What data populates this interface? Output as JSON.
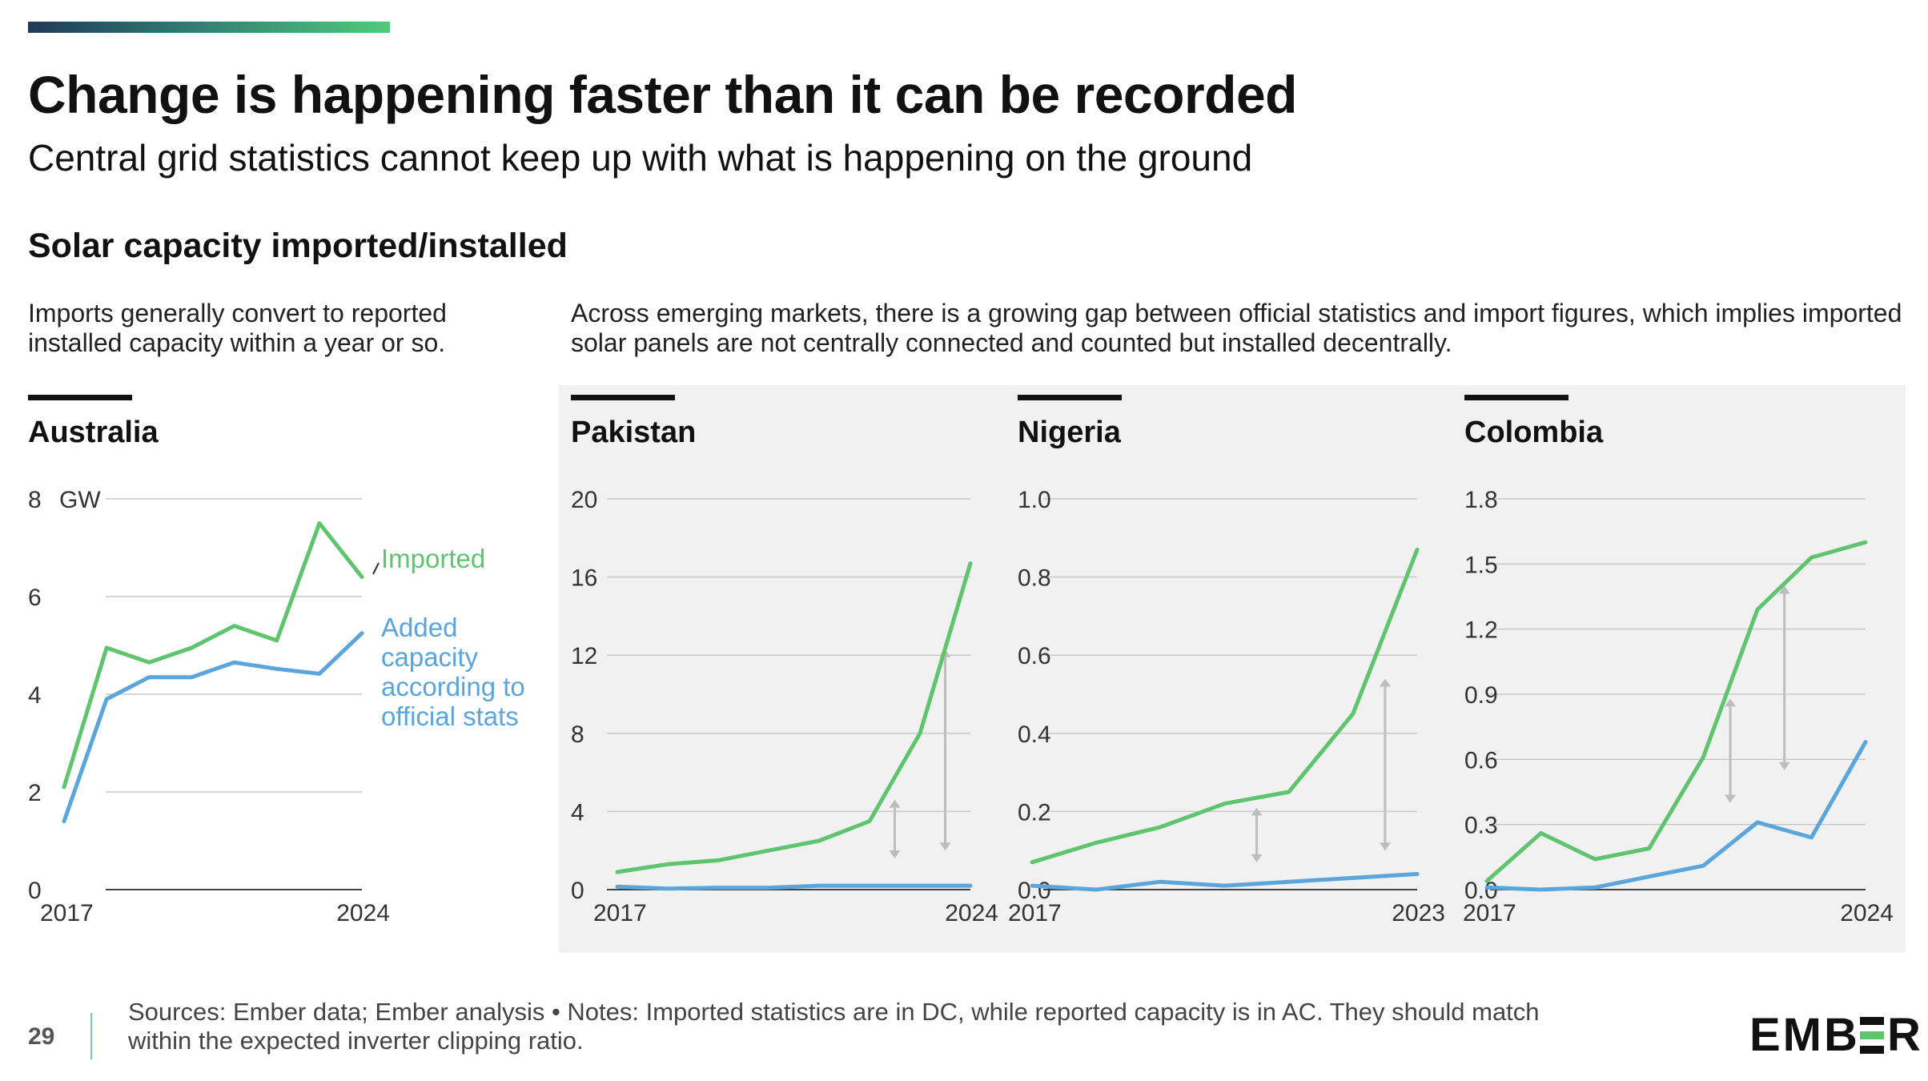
{
  "header": {
    "title": "Change is happening faster than it can be recorded",
    "subtitle": "Central grid statistics cannot keep up with what is happening on the ground",
    "section_title": "Solar capacity imported/installed",
    "desc_left": "Imports generally convert to reported installed capacity within a year or so.",
    "desc_right": "Across emerging markets, there is a growing gap between official statistics and import figures, which implies imported solar panels are not centrally connected and counted but installed decentrally."
  },
  "footer": {
    "page_number": "29",
    "sources": "Sources: Ember data; Ember analysis • Notes: Imported statistics are in DC, while reported capacity is in AC. They should match within the expected inverter clipping ratio.",
    "logo_text": "EMBER"
  },
  "colors": {
    "imported": "#5ec46e",
    "official": "#5aa5dc",
    "grid": "#c8c8c8",
    "arrow": "#bdbdbd",
    "panel": "#f1f1f1"
  },
  "chart_data": [
    {
      "type": "line",
      "title": "Australia",
      "unit_label": "GW",
      "x": [
        2017,
        2018,
        2019,
        2020,
        2021,
        2022,
        2023,
        2024
      ],
      "x_tick_labels": [
        "2017",
        "2024"
      ],
      "ylim": [
        0,
        8
      ],
      "y_ticks": [
        "0",
        "2",
        "4",
        "6",
        "8"
      ],
      "series": [
        {
          "name": "Imported",
          "values": [
            2.1,
            4.95,
            4.65,
            4.95,
            5.4,
            5.1,
            7.5,
            6.4
          ]
        },
        {
          "name": "Added capacity according to official stats",
          "values": [
            1.4,
            3.9,
            4.35,
            4.35,
            4.65,
            4.52,
            4.42,
            5.25
          ]
        }
      ],
      "annotations": {
        "imported": "Imported",
        "official": [
          "Added",
          "capacity",
          "according to",
          "official stats"
        ]
      }
    },
    {
      "type": "line",
      "title": "Pakistan",
      "x": [
        2017,
        2018,
        2019,
        2020,
        2021,
        2022,
        2023,
        2024
      ],
      "x_tick_labels": [
        "2017",
        "2024"
      ],
      "ylim": [
        0,
        20
      ],
      "y_ticks": [
        "0",
        "4",
        "8",
        "12",
        "16",
        "20"
      ],
      "series": [
        {
          "name": "Imported",
          "values": [
            0.9,
            1.3,
            1.5,
            2.0,
            2.5,
            3.5,
            8.0,
            16.7
          ]
        },
        {
          "name": "Official",
          "values": [
            0.15,
            0.05,
            0.1,
            0.1,
            0.2,
            0.2,
            0.2,
            0.2
          ]
        }
      ],
      "gap_arrows": [
        {
          "x": 2022.5,
          "from": 1.6,
          "to": 4.6
        },
        {
          "x": 2023.5,
          "from": 2.0,
          "to": 12.3
        }
      ]
    },
    {
      "type": "line",
      "title": "Nigeria",
      "x": [
        2017,
        2018,
        2019,
        2020,
        2021,
        2022,
        2023
      ],
      "x_tick_labels": [
        "2017",
        "2023"
      ],
      "ylim": [
        0,
        1.0
      ],
      "y_ticks": [
        "0.0",
        "0.2",
        "0.4",
        "0.6",
        "0.8",
        "1.0"
      ],
      "series": [
        {
          "name": "Imported",
          "values": [
            0.07,
            0.12,
            0.16,
            0.22,
            0.25,
            0.45,
            0.87
          ]
        },
        {
          "name": "Official",
          "values": [
            0.01,
            0.0,
            0.02,
            0.01,
            0.02,
            0.03,
            0.04
          ]
        }
      ],
      "gap_arrows": [
        {
          "x": 2020.5,
          "from": 0.07,
          "to": 0.21
        },
        {
          "x": 2022.5,
          "from": 0.1,
          "to": 0.54
        }
      ]
    },
    {
      "type": "line",
      "title": "Colombia",
      "x": [
        2017,
        2018,
        2019,
        2020,
        2021,
        2022,
        2023,
        2024
      ],
      "x_tick_labels": [
        "2017",
        "2024"
      ],
      "ylim": [
        0,
        1.8
      ],
      "y_ticks": [
        "0.0",
        "0.3",
        "0.6",
        "0.9",
        "1.2",
        "1.5",
        "1.8"
      ],
      "series": [
        {
          "name": "Imported",
          "values": [
            0.04,
            0.26,
            0.14,
            0.19,
            0.61,
            1.29,
            1.53,
            1.6
          ]
        },
        {
          "name": "Official",
          "values": [
            0.01,
            0.0,
            0.01,
            0.06,
            0.11,
            0.31,
            0.24,
            0.68
          ]
        }
      ],
      "gap_arrows": [
        {
          "x": 2021.5,
          "from": 0.4,
          "to": 0.88
        },
        {
          "x": 2022.5,
          "from": 0.55,
          "to": 1.4
        }
      ]
    }
  ]
}
